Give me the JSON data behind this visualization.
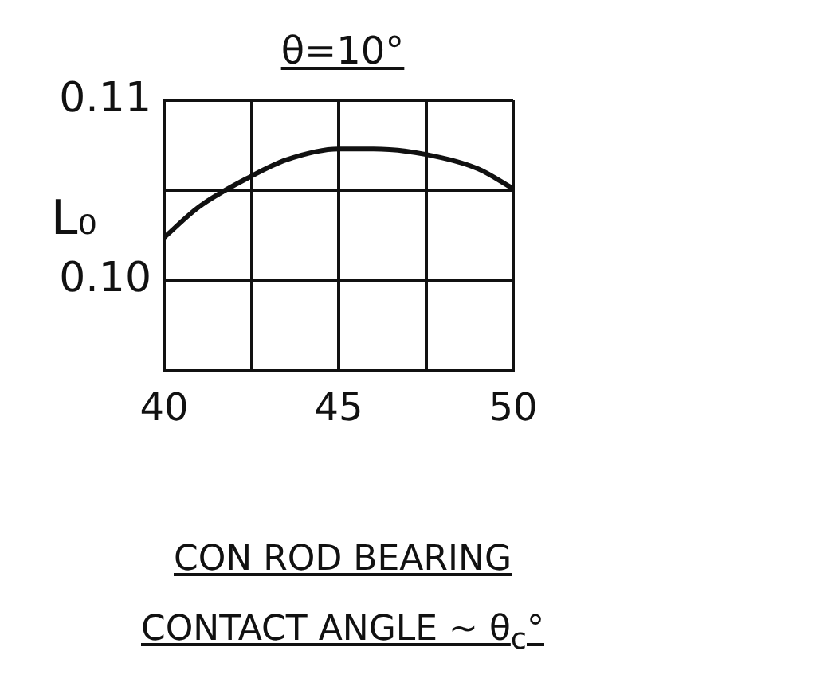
{
  "chart_data": {
    "type": "line",
    "title": "θ=10°",
    "xlabel": "CON ROD BEARING\nCONTACT ANGLE ~ θ$_{c}$°",
    "ylabel": "L₀",
    "x": [
      40,
      41,
      42.5,
      43.5,
      45,
      46,
      47.5,
      49,
      50
    ],
    "series": [
      {
        "color": "#111111",
        "values": [
          0.1024,
          0.1041,
          0.1058,
          0.1067,
          0.1073,
          0.1073,
          0.107,
          0.1062,
          0.1051
        ]
      }
    ],
    "xlim": [
      40,
      50
    ],
    "xticks": [
      40,
      {
        "value": 42.5,
        "label": null
      },
      45,
      {
        "value": 47.5,
        "label": null
      },
      50
    ],
    "ylim": [
      0.095,
      0.11
    ],
    "yticks": [
      {
        "value": 0.095,
        "label": null
      },
      {
        "value": 0.1,
        "label": "0.10"
      },
      {
        "value": 0.105,
        "label": null
      },
      0.11
    ],
    "grid": true,
    "legend": false,
    "marker": "none",
    "line_style": "solid"
  }
}
